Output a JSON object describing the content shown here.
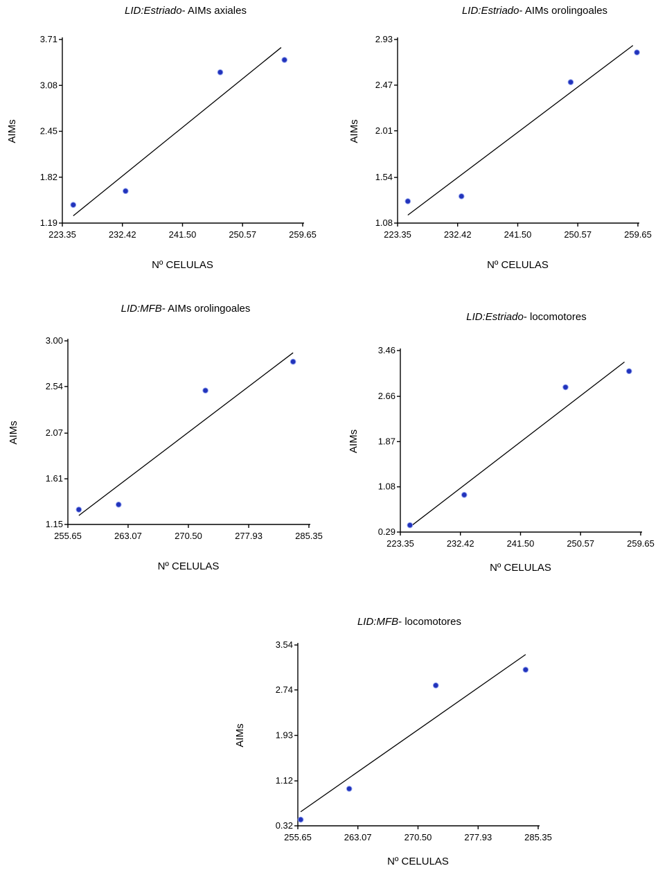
{
  "chart_data": [
    {
      "type": "scatter",
      "title_italic": "LID:Estriado",
      "title_rest": "- AIMs axiales",
      "xlabel": "Nº CELULAS",
      "ylabel": "AIMs",
      "xlim": [
        223.35,
        259.65
      ],
      "ylim": [
        1.19,
        3.71
      ],
      "xticks": [
        "223.35",
        "232.42",
        "241.50",
        "250.57",
        "259.65"
      ],
      "yticks": [
        "1.19",
        "1.82",
        "2.45",
        "3.08",
        "3.71"
      ],
      "points": [
        {
          "x": 225.0,
          "y": 1.44
        },
        {
          "x": 232.9,
          "y": 1.63
        },
        {
          "x": 247.2,
          "y": 3.26
        },
        {
          "x": 256.9,
          "y": 3.43
        }
      ],
      "trendline": [
        [
          225.0,
          1.29
        ],
        [
          256.4,
          3.6
        ]
      ],
      "point_color": "#2233bb"
    },
    {
      "type": "scatter",
      "title_italic": "LID:Estriado",
      "title_rest": "- AIMs orolingoales",
      "xlabel": "Nº CELULAS",
      "ylabel": "AIMs",
      "xlim": [
        223.35,
        259.65
      ],
      "ylim": [
        1.08,
        2.93
      ],
      "xticks": [
        "223.35",
        "232.42",
        "241.50",
        "250.57",
        "259.65"
      ],
      "yticks": [
        "1.08",
        "1.54",
        "2.01",
        "2.47",
        "2.93"
      ],
      "points": [
        {
          "x": 224.9,
          "y": 1.3
        },
        {
          "x": 233.0,
          "y": 1.35
        },
        {
          "x": 249.5,
          "y": 2.5
        },
        {
          "x": 259.5,
          "y": 2.8
        }
      ],
      "trendline": [
        [
          224.9,
          1.16
        ],
        [
          258.9,
          2.87
        ]
      ],
      "point_color": "#2233bb"
    },
    {
      "type": "scatter",
      "title_italic": "LID:MFB",
      "title_rest": "- AIMs orolingoales",
      "xlabel": "Nº CELULAS",
      "ylabel": "AIMs",
      "xlim": [
        255.65,
        285.35
      ],
      "ylim": [
        1.15,
        3.0
      ],
      "xticks": [
        "255.65",
        "263.07",
        "270.50",
        "277.93",
        "285.35"
      ],
      "yticks": [
        "1.15",
        "1.61",
        "2.07",
        "2.54",
        "3.00"
      ],
      "points": [
        {
          "x": 257.0,
          "y": 1.3
        },
        {
          "x": 261.9,
          "y": 1.35
        },
        {
          "x": 272.6,
          "y": 2.5
        },
        {
          "x": 283.4,
          "y": 2.79
        }
      ],
      "trendline": [
        [
          257.0,
          1.24
        ],
        [
          283.4,
          2.88
        ]
      ],
      "point_color": "#2233bb"
    },
    {
      "type": "scatter",
      "title_italic": "LID:Estriado",
      "title_rest": "- locomotores",
      "xlabel": "Nº CELULAS",
      "ylabel": "AIMs",
      "xlim": [
        223.35,
        259.65
      ],
      "ylim": [
        0.29,
        3.46
      ],
      "xticks": [
        "223.35",
        "232.42",
        "241.50",
        "250.57",
        "259.65"
      ],
      "yticks": [
        "0.29",
        "1.08",
        "1.87",
        "2.66",
        "3.46"
      ],
      "points": [
        {
          "x": 224.8,
          "y": 0.41
        },
        {
          "x": 233.0,
          "y": 0.94
        },
        {
          "x": 248.3,
          "y": 2.82
        },
        {
          "x": 257.9,
          "y": 3.1
        }
      ],
      "trendline": [
        [
          224.8,
          0.38
        ],
        [
          257.2,
          3.26
        ]
      ],
      "point_color": "#2233bb"
    },
    {
      "type": "scatter",
      "title_italic": "LID:MFB",
      "title_rest": "- locomotores",
      "xlabel": "Nº CELULAS",
      "ylabel": "AIMs",
      "xlim": [
        255.65,
        285.35
      ],
      "ylim": [
        0.32,
        3.54
      ],
      "xticks": [
        "255.65",
        "263.07",
        "270.50",
        "277.93",
        "285.35"
      ],
      "yticks": [
        "0.32",
        "1.12",
        "1.93",
        "2.74",
        "3.54"
      ],
      "points": [
        {
          "x": 256.0,
          "y": 0.43
        },
        {
          "x": 262.0,
          "y": 0.98
        },
        {
          "x": 272.7,
          "y": 2.82
        },
        {
          "x": 283.8,
          "y": 3.1
        }
      ],
      "trendline": [
        [
          256.0,
          0.57
        ],
        [
          283.8,
          3.37
        ]
      ],
      "point_color": "#2233bb"
    }
  ]
}
